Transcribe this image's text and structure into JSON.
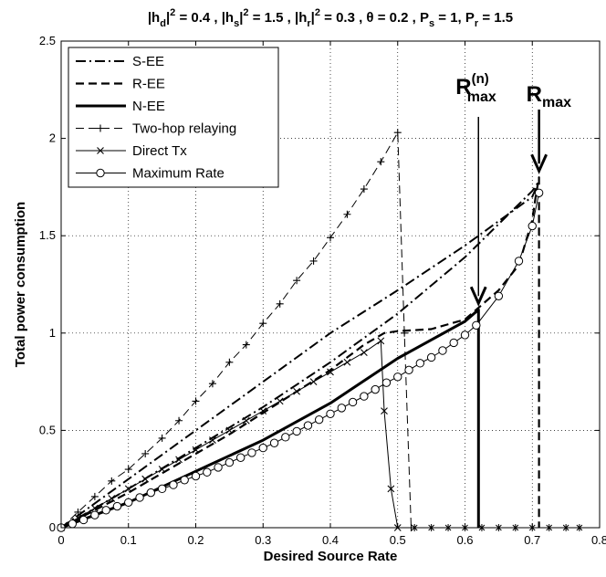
{
  "chart_data": {
    "type": "line",
    "title": {
      "parts": [
        {
          "t": "|h"
        },
        {
          "t": "d",
          "sub": true
        },
        {
          "t": "|"
        },
        {
          "t": "2",
          "sup": true
        },
        {
          "t": " = 0.4 , |h"
        },
        {
          "t": "s",
          "sub": true
        },
        {
          "t": "|"
        },
        {
          "t": "2",
          "sup": true
        },
        {
          "t": " = 1.5 , |h"
        },
        {
          "t": "r",
          "sub": true
        },
        {
          "t": "|"
        },
        {
          "t": "2",
          "sup": true
        },
        {
          "t": " = 0.3 , θ = 0.2 , P"
        },
        {
          "t": "s",
          "sub": true
        },
        {
          "t": " = 1, P"
        },
        {
          "t": "r",
          "sub": true
        },
        {
          "t": " = 1.5"
        }
      ]
    },
    "xlabel": "Desired Source Rate",
    "ylabel": "Total power consumption",
    "xlim": [
      0,
      0.8
    ],
    "ylim": [
      0,
      2.5
    ],
    "xticks": [
      0,
      0.1,
      0.2,
      0.3,
      0.4,
      0.5,
      0.6,
      0.7,
      0.8
    ],
    "yticks": [
      0,
      0.5,
      1,
      1.5,
      2,
      2.5
    ],
    "xtick_labels": [
      "0",
      "0.1",
      "0.2",
      "0.3",
      "0.4",
      "0.5",
      "0.6",
      "0.7",
      "0.8"
    ],
    "ytick_labels": [
      "0",
      "0.5",
      "1",
      "1.5",
      "2",
      "2.5"
    ],
    "grid": true,
    "legend_position": "top-left",
    "series": [
      {
        "name": "S-EE",
        "style": "dashdot",
        "width": 2,
        "marker": "none",
        "x": [
          0,
          0.1,
          0.2,
          0.3,
          0.4,
          0.5,
          0.6,
          0.7,
          0.71
        ],
        "y": [
          0,
          0.2,
          0.41,
          0.62,
          0.85,
          1.1,
          1.39,
          1.73,
          1.78
        ]
      },
      {
        "name": "S-EE",
        "style": "dashdot",
        "width": 2,
        "marker": "none",
        "x": [
          0,
          0.1,
          0.2,
          0.3,
          0.4,
          0.5,
          0.6,
          0.7,
          0.71
        ],
        "y": [
          0,
          0.25,
          0.5,
          0.75,
          1.0,
          1.22,
          1.45,
          1.7,
          1.78
        ]
      },
      {
        "name": "R-EE",
        "style": "dashed",
        "width": 2.2,
        "marker": "none",
        "x": [
          0,
          0.05,
          0.1,
          0.15,
          0.2,
          0.25,
          0.3,
          0.35,
          0.4,
          0.45,
          0.48,
          0.5,
          0.55,
          0.6,
          0.65,
          0.68,
          0.7,
          0.705,
          0.71,
          0.71
        ],
        "y": [
          0,
          0.09,
          0.18,
          0.28,
          0.38,
          0.48,
          0.59,
          0.7,
          0.81,
          0.94,
          1.0,
          1.01,
          1.02,
          1.07,
          1.22,
          1.35,
          1.58,
          1.7,
          1.8,
          0
        ]
      },
      {
        "name": "N-EE",
        "style": "solid",
        "width": 3,
        "marker": "none",
        "x": [
          0,
          0.1,
          0.2,
          0.3,
          0.4,
          0.5,
          0.6,
          0.62,
          0.62
        ],
        "y": [
          0,
          0.13,
          0.29,
          0.45,
          0.64,
          0.87,
          1.06,
          1.12,
          0
        ]
      },
      {
        "name": "Two-hop relaying",
        "style": "dashed",
        "width": 1,
        "marker": "plus",
        "x": [
          0,
          0.025,
          0.05,
          0.075,
          0.1,
          0.125,
          0.15,
          0.175,
          0.2,
          0.225,
          0.25,
          0.275,
          0.3,
          0.325,
          0.35,
          0.375,
          0.4,
          0.425,
          0.45,
          0.475,
          0.5,
          0.51,
          0.52
        ],
        "y": [
          0,
          0.08,
          0.16,
          0.24,
          0.3,
          0.38,
          0.46,
          0.55,
          0.65,
          0.74,
          0.85,
          0.94,
          1.05,
          1.15,
          1.27,
          1.37,
          1.49,
          1.61,
          1.74,
          1.88,
          2.03,
          1.0,
          0
        ]
      },
      {
        "name": "Direct Tx",
        "style": "solid",
        "width": 1,
        "marker": "x",
        "x": [
          0,
          0.025,
          0.05,
          0.075,
          0.1,
          0.125,
          0.15,
          0.175,
          0.2,
          0.225,
          0.25,
          0.275,
          0.3,
          0.325,
          0.35,
          0.375,
          0.4,
          0.425,
          0.45,
          0.475,
          0.48,
          0.49,
          0.5
        ],
        "y": [
          0,
          0.05,
          0.1,
          0.15,
          0.2,
          0.25,
          0.3,
          0.35,
          0.4,
          0.45,
          0.5,
          0.55,
          0.6,
          0.65,
          0.7,
          0.75,
          0.8,
          0.85,
          0.9,
          0.96,
          0.6,
          0.2,
          0
        ]
      },
      {
        "name": "Direct Tx",
        "style": "none",
        "width": 1,
        "marker": "star",
        "x": [
          0.525,
          0.55,
          0.575,
          0.6,
          0.625,
          0.65,
          0.675,
          0.7,
          0.725,
          0.75,
          0.77
        ],
        "y": [
          0,
          0,
          0,
          0,
          0,
          0,
          0,
          0,
          0,
          0,
          0
        ]
      },
      {
        "name": "Maximum Rate",
        "style": "solid",
        "width": 1,
        "marker": "circle",
        "x": [
          0,
          0.0167,
          0.0333,
          0.05,
          0.0667,
          0.0833,
          0.1,
          0.1167,
          0.1333,
          0.15,
          0.1667,
          0.1833,
          0.2,
          0.2167,
          0.2333,
          0.25,
          0.2667,
          0.2833,
          0.3,
          0.3167,
          0.3333,
          0.35,
          0.3667,
          0.3833,
          0.4,
          0.4167,
          0.4333,
          0.45,
          0.4667,
          0.4833,
          0.5,
          0.5167,
          0.5333,
          0.55,
          0.5667,
          0.5833,
          0.6,
          0.6167,
          0.65,
          0.68,
          0.7,
          0.71
        ],
        "y": [
          0,
          0.02,
          0.04,
          0.065,
          0.09,
          0.11,
          0.13,
          0.155,
          0.18,
          0.2,
          0.22,
          0.245,
          0.265,
          0.285,
          0.31,
          0.335,
          0.36,
          0.385,
          0.41,
          0.435,
          0.465,
          0.495,
          0.525,
          0.555,
          0.585,
          0.615,
          0.645,
          0.675,
          0.71,
          0.745,
          0.775,
          0.81,
          0.845,
          0.875,
          0.91,
          0.95,
          0.99,
          1.04,
          1.19,
          1.37,
          1.55,
          1.72
        ]
      }
    ],
    "legend": [
      {
        "label": "S-EE",
        "style": "dashdot",
        "width": 2,
        "marker": "none"
      },
      {
        "label": "R-EE",
        "style": "dashed",
        "width": 2.2,
        "marker": "none"
      },
      {
        "label": "N-EE",
        "style": "solid",
        "width": 3,
        "marker": "none"
      },
      {
        "label": "Two-hop relaying",
        "style": "dashed",
        "width": 1,
        "marker": "plus"
      },
      {
        "label": "Direct Tx",
        "style": "solid",
        "width": 1,
        "marker": "x"
      },
      {
        "label": "Maximum Rate",
        "style": "solid",
        "width": 1,
        "marker": "circle"
      }
    ],
    "annotations": [
      {
        "base": "R",
        "sup": "(n)",
        "sub": "max",
        "x": 0.62,
        "y": 1.12
      },
      {
        "base": "R",
        "sup": "",
        "sub": "max",
        "x": 0.71,
        "y": 1.8
      }
    ]
  }
}
